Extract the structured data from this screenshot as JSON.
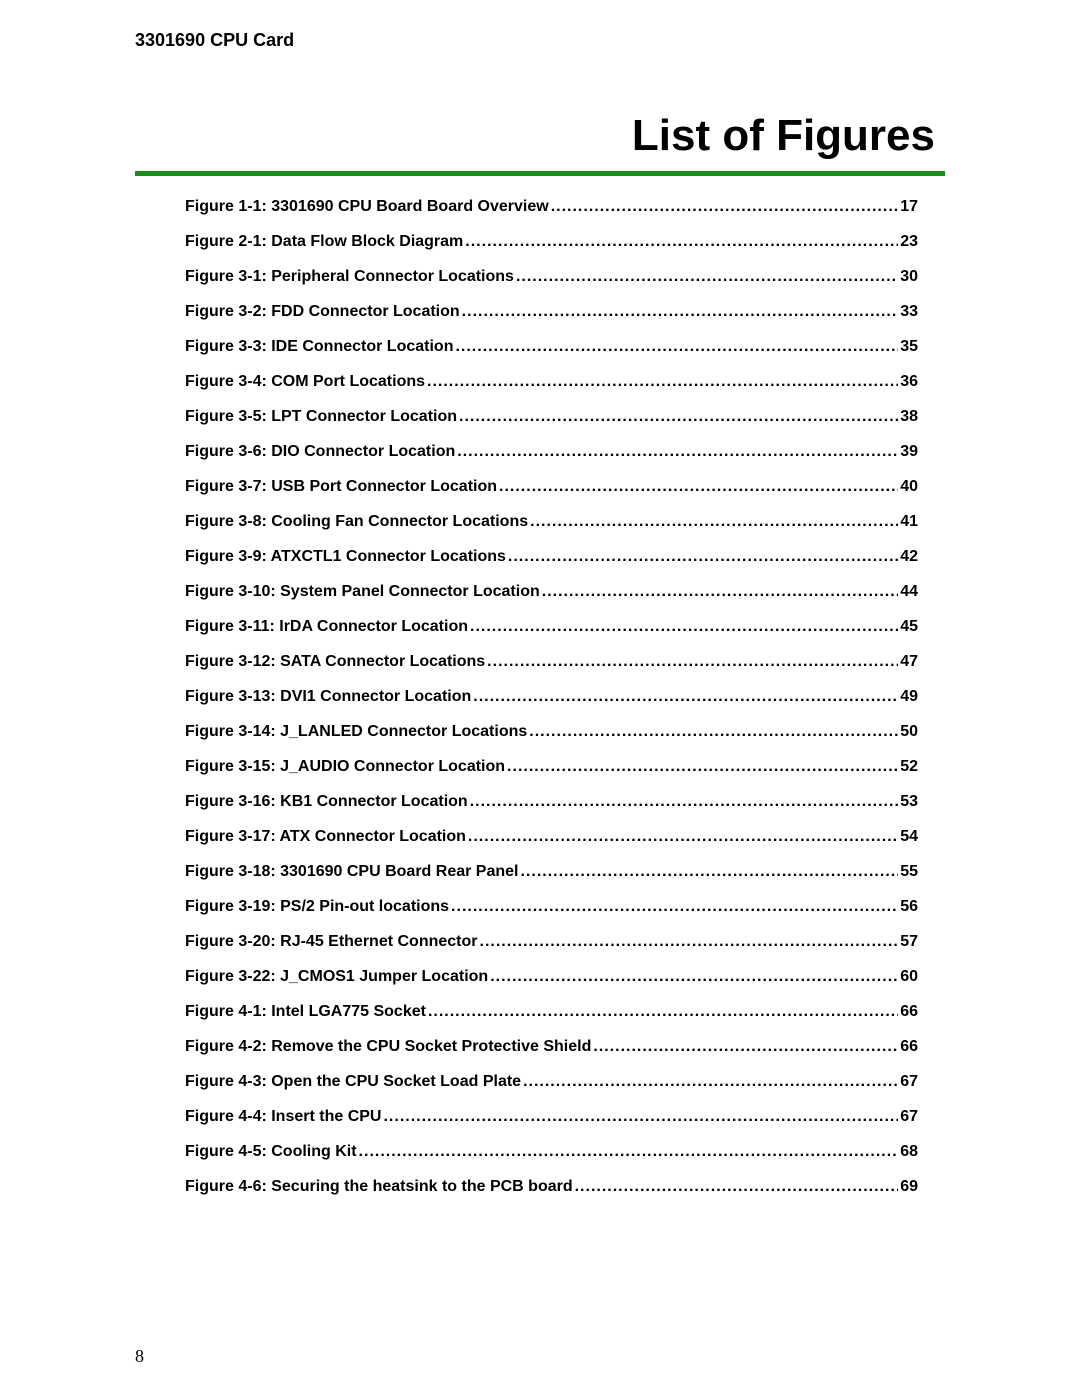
{
  "header": "3301690 CPU Card",
  "title": "List of Figures",
  "colors": {
    "green_line": "#1a8b1a",
    "text": "#000000",
    "background": "#ffffff"
  },
  "typography": {
    "header_fontsize": 18,
    "title_fontsize": 44,
    "entry_fontsize": 16,
    "pagenum_fontsize": 18,
    "font_family": "Arial, Helvetica, sans-serif",
    "pagenum_font_family": "Times New Roman, serif"
  },
  "page_number": "8",
  "entries": [
    {
      "label": "Figure 1-1: 3301690 CPU Board Board Overview",
      "page": "17"
    },
    {
      "label": "Figure 2-1: Data Flow Block Diagram",
      "page": "23"
    },
    {
      "label": "Figure 3-1: Peripheral Connector Locations ",
      "page": "30"
    },
    {
      "label": "Figure 3-2: FDD Connector Location",
      "page": "33"
    },
    {
      "label": "Figure 3-3: IDE Connector Location ",
      "page": "35"
    },
    {
      "label": "Figure 3-4: COM Port Locations",
      "page": "36"
    },
    {
      "label": "Figure 3-5: LPT Connector Location ",
      "page": "38"
    },
    {
      "label": "Figure 3-6: DIO Connector Location",
      "page": "39"
    },
    {
      "label": "Figure 3-7: USB Port Connector Location ",
      "page": "40"
    },
    {
      "label": "Figure 3-8: Cooling Fan Connector Locations ",
      "page": "41"
    },
    {
      "label": "Figure 3-9: ATXCTL1 Connector Locations",
      "page": "42"
    },
    {
      "label": "Figure 3-10: System Panel Connector Location",
      "page": "44"
    },
    {
      "label": "Figure 3-11: IrDA Connector Location ",
      "page": "45"
    },
    {
      "label": "Figure 3-12: SATA Connector Locations ",
      "page": "47"
    },
    {
      "label": "Figure 3-13: DVI1 Connector Location ",
      "page": "49"
    },
    {
      "label": "Figure 3-14: J_LANLED Connector Locations ",
      "page": "50"
    },
    {
      "label": "Figure 3-15: J_AUDIO Connector Location ",
      "page": "52"
    },
    {
      "label": "Figure 3-16: KB1 Connector Location",
      "page": "53"
    },
    {
      "label": "Figure 3-17: ATX Connector Location",
      "page": "54"
    },
    {
      "label": "Figure 3-18: 3301690 CPU Board Rear Panel",
      "page": "55"
    },
    {
      "label": "Figure 3-19: PS/2 Pin-out locations ",
      "page": "56"
    },
    {
      "label": "Figure 3-20: RJ-45 Ethernet Connector",
      "page": "57"
    },
    {
      "label": "Figure 3-22: J_CMOS1 Jumper Location ",
      "page": "60"
    },
    {
      "label": "Figure 4-1: Intel LGA775 Socket ",
      "page": "66"
    },
    {
      "label": "Figure 4-2: Remove the CPU Socket Protective Shield",
      "page": "66"
    },
    {
      "label": "Figure 4-3: Open the CPU Socket Load Plate",
      "page": "67"
    },
    {
      "label": "Figure 4-4: Insert the CPU ",
      "page": "67"
    },
    {
      "label": "Figure 4-5: Cooling Kit",
      "page": "68"
    },
    {
      "label": "Figure 4-6: Securing the heatsink to the PCB board ",
      "page": "69"
    }
  ]
}
